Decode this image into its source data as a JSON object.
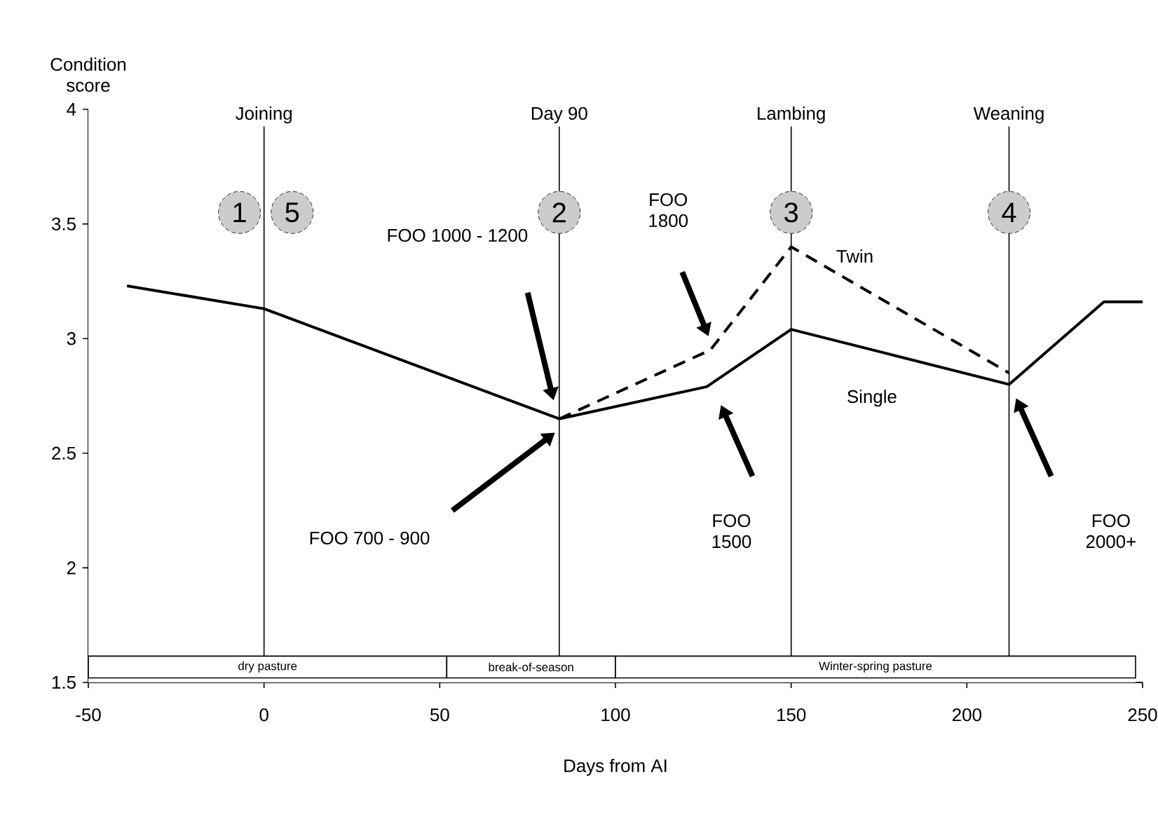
{
  "chart_data": {
    "type": "line",
    "xlabel": "Days from AI",
    "ylabel": "Condition score",
    "xlim": [
      -50,
      250
    ],
    "xticks": [
      -50,
      0,
      50,
      100,
      150,
      200,
      250
    ],
    "ylim": [
      1.5,
      4
    ],
    "yticks": [
      1.5,
      2,
      2.5,
      3,
      3.5,
      4
    ],
    "series": [
      {
        "name": "Single",
        "color": "#000000",
        "line_style": "solid",
        "x": [
          -39,
          0,
          84,
          126,
          150,
          212,
          239,
          250
        ],
        "values": [
          3.23,
          3.13,
          2.65,
          2.79,
          3.04,
          2.8,
          3.16,
          3.16
        ]
      },
      {
        "name": "Twin",
        "color": "#000000",
        "line_style": "dashed",
        "x": [
          84,
          127,
          150,
          212
        ],
        "values": [
          2.65,
          2.95,
          3.4,
          2.85
        ]
      }
    ],
    "ref_lines": [
      {
        "axis": "x",
        "value": 0,
        "label": "Joining"
      },
      {
        "axis": "x",
        "value": 84,
        "label": "Day 90"
      },
      {
        "axis": "x",
        "value": 150,
        "label": "Lambing"
      },
      {
        "axis": "x",
        "value": 212,
        "label": "Weaning"
      }
    ],
    "bands": [
      {
        "axis": "x",
        "from": -50,
        "to": 52,
        "label": "dry pasture",
        "color": "#ffffff"
      },
      {
        "axis": "x",
        "from": 52,
        "to": 100,
        "label": "break-of-season",
        "color": "#ffffff"
      },
      {
        "axis": "x",
        "from": 100,
        "to": 248,
        "label": "Winter-spring pasture",
        "color": "#ffffff"
      }
    ],
    "annotations": [
      {
        "text": "1",
        "x": -7,
        "y": 3.55
      },
      {
        "text": "5",
        "x": 8,
        "y": 3.55
      },
      {
        "text": "2",
        "x": 84,
        "y": 3.55
      },
      {
        "text": "3",
        "x": 150,
        "y": 3.55
      },
      {
        "text": "4",
        "x": 212,
        "y": 3.55
      },
      "FOO 1000 - 1200",
      "FOO 700 - 900",
      "FOO 1800",
      "FOO 1500",
      "FOO 2000+"
    ]
  }
}
